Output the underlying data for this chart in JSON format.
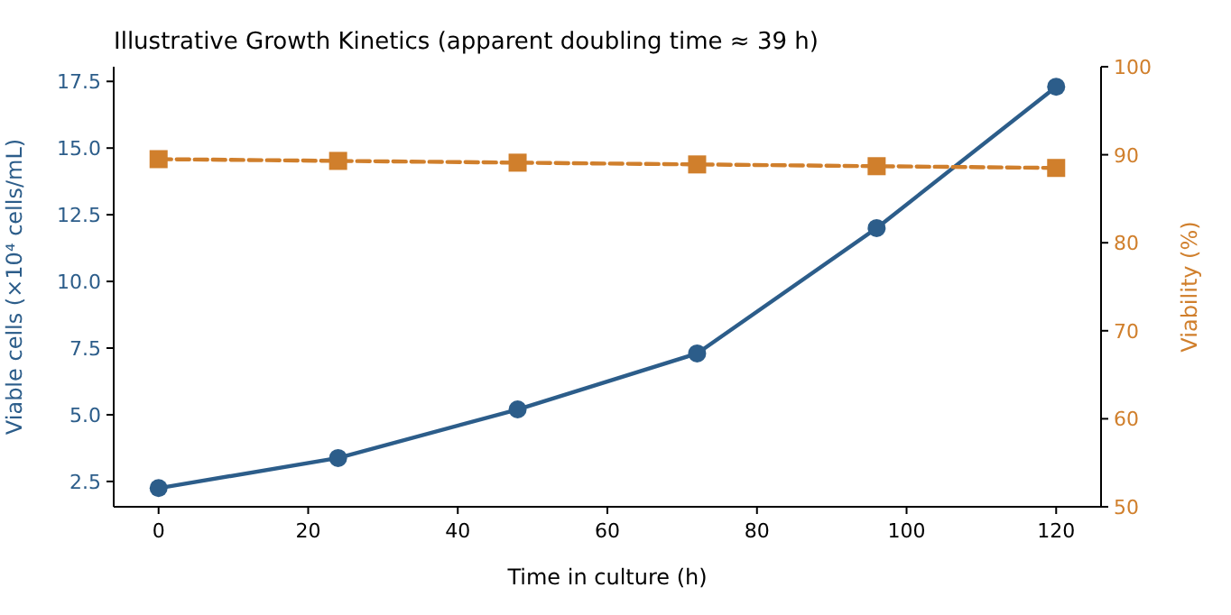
{
  "chart_data": {
    "type": "line",
    "title": "Illustrative Growth Kinetics (apparent doubling time ≈ 39 h)",
    "xlabel": "Time in culture (h)",
    "ylabel": "Viable cells (×10⁴ cells/mL)",
    "y2label": "Viability (%)",
    "x": [
      0,
      24,
      48,
      72,
      96,
      120
    ],
    "series": [
      {
        "color": "#2c5d8a",
        "values": [
          2.25,
          3.38,
          5.2,
          7.3,
          12.0,
          17.3
        ],
        "marker": "circle",
        "line_style": "solid"
      },
      {
        "color": "#d07f2c",
        "values": [
          89.5,
          89.3,
          89.1,
          88.9,
          88.7,
          88.5
        ],
        "marker": "square",
        "line_style": "dashed",
        "axis": "y2"
      }
    ],
    "xlim": [
      -6,
      126
    ],
    "xticks": [
      0,
      20,
      40,
      60,
      80,
      100,
      120
    ],
    "ylim": [
      1.55,
      18.05
    ],
    "yticks": [
      {
        "value": 2.5,
        "label": "2.5"
      },
      {
        "value": 5,
        "label": "5.0"
      },
      {
        "value": 7.5,
        "label": "7.5"
      },
      {
        "value": 10,
        "label": "10.0"
      },
      {
        "value": 12.5,
        "label": "12.5"
      },
      {
        "value": 15,
        "label": "15.0"
      },
      {
        "value": 17.5,
        "label": "17.5"
      }
    ],
    "y2lim": [
      50,
      100
    ],
    "y2ticks": [
      50,
      60,
      70,
      80,
      90,
      100
    ],
    "grid": false
  }
}
